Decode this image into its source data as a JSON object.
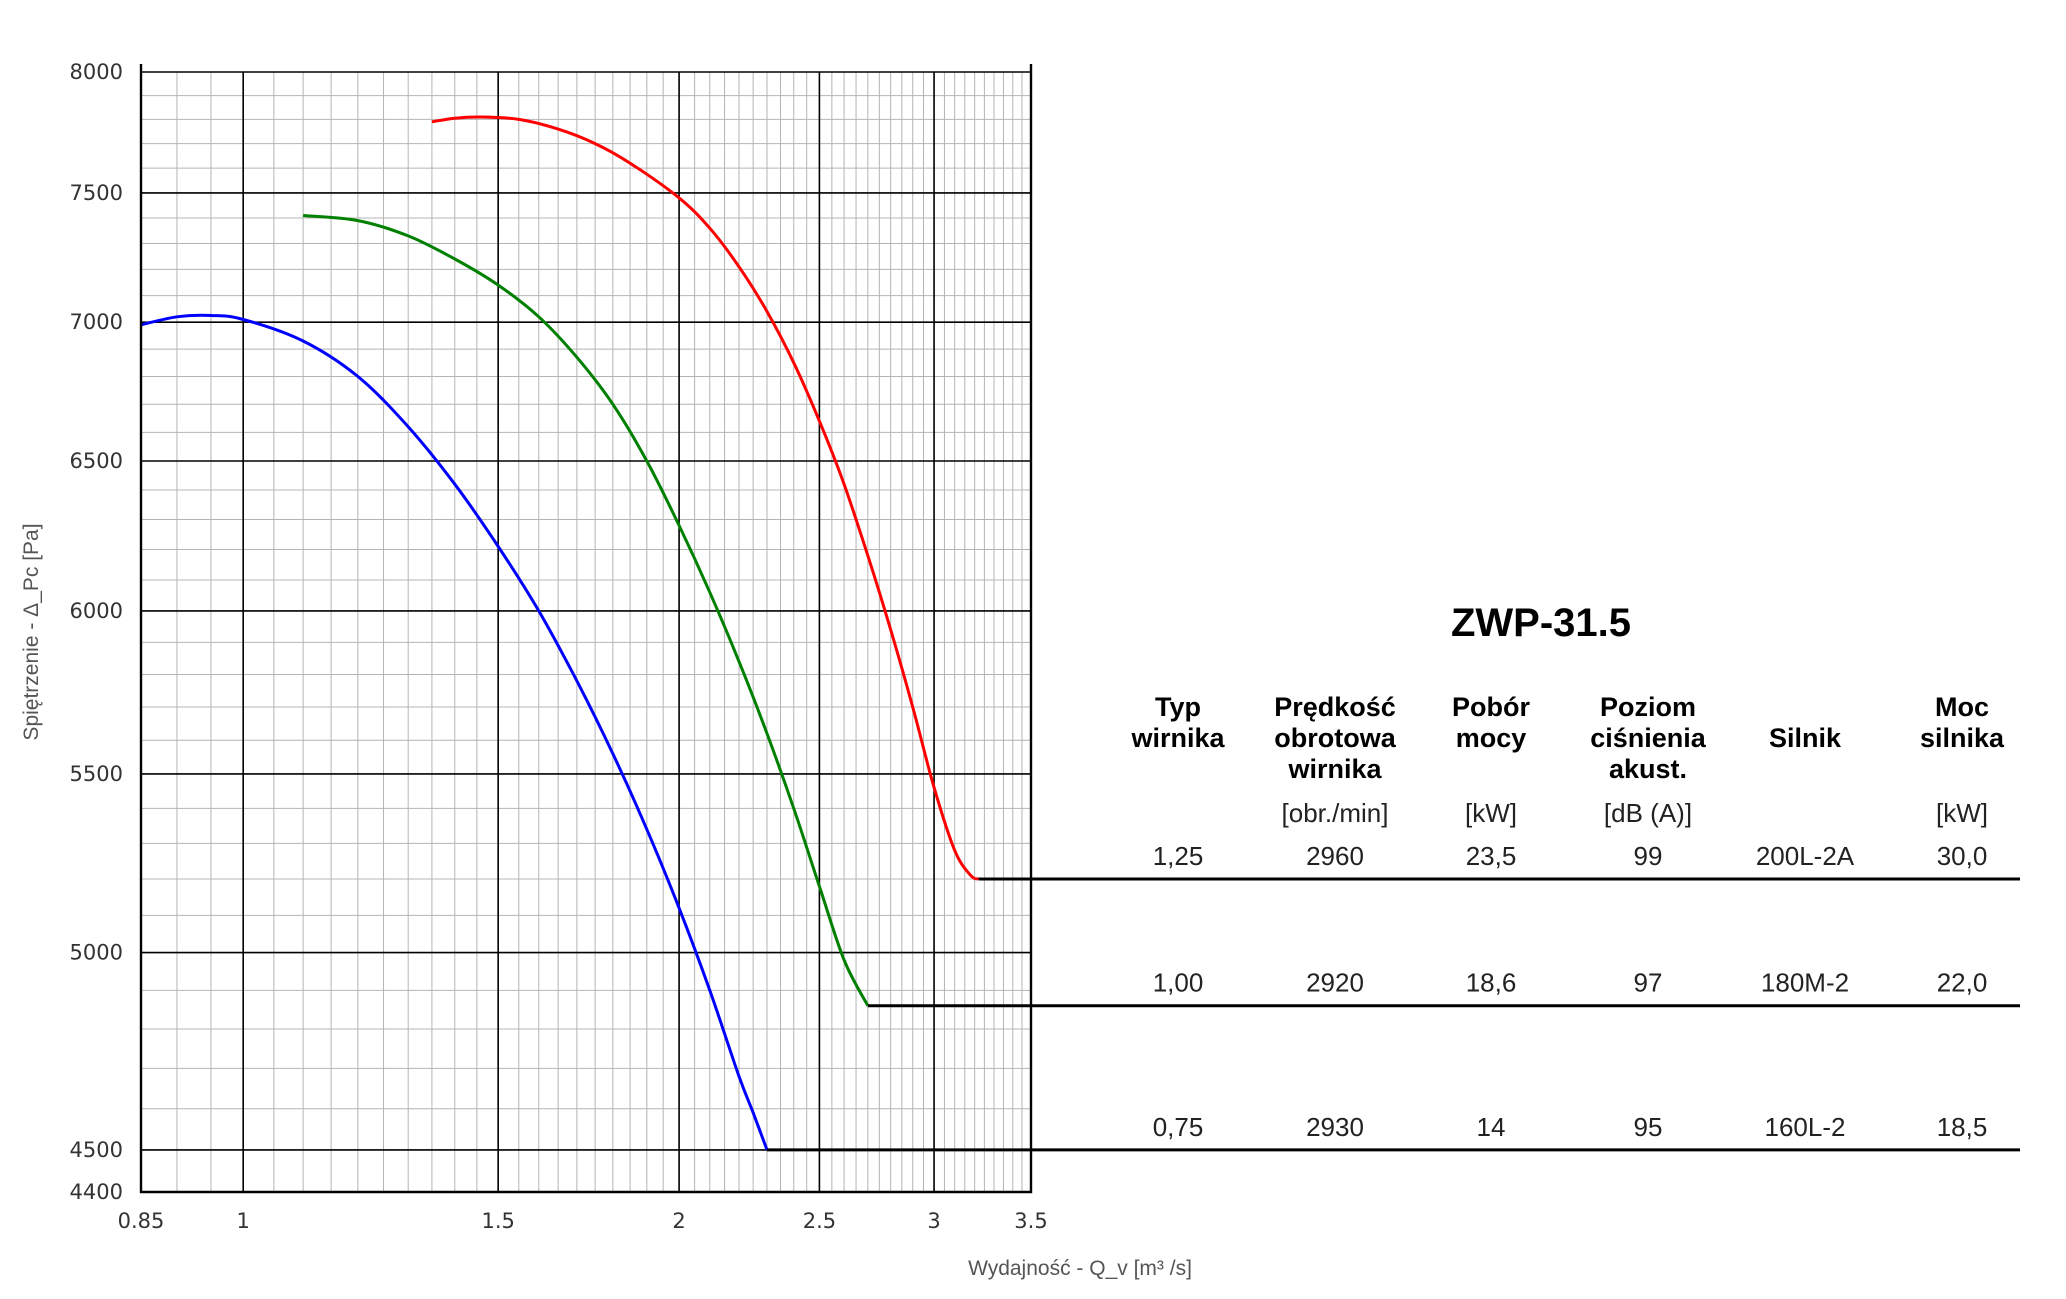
{
  "chart_data": {
    "type": "line",
    "xlabel": "Wydajność - Q_v [m³ /s]",
    "ylabel": "Spiętrzenie - Δ_Pc [Pa]",
    "x_scale": "log",
    "y_scale": "log",
    "xlim": [
      0.85,
      3.5
    ],
    "ylim": [
      4400,
      8000
    ],
    "x_ticks": [
      "0.85",
      "1",
      "1.5",
      "2",
      "2.5",
      "3",
      "3.5"
    ],
    "y_ticks": [
      "4400",
      "4500",
      "5000",
      "5500",
      "6000",
      "6500",
      "7000",
      "7500",
      "8000"
    ],
    "grid": true,
    "series": [
      {
        "color": "#ff0000",
        "x": [
          1.35,
          1.4,
          1.46,
          1.55,
          1.65,
          1.75,
          1.85,
          2.0,
          2.1,
          2.2,
          2.3,
          2.4,
          2.5,
          2.6,
          2.7,
          2.8,
          2.9,
          3.0,
          3.1,
          3.18,
          3.22
        ],
        "y": [
          7790,
          7805,
          7810,
          7800,
          7760,
          7700,
          7620,
          7480,
          7360,
          7210,
          7040,
          6850,
          6640,
          6420,
          6180,
          5940,
          5700,
          5460,
          5280,
          5210,
          5200
        ],
        "end_x": 3.22,
        "end_y": 5200
      },
      {
        "color": "#008000",
        "x": [
          1.1,
          1.2,
          1.3,
          1.4,
          1.5,
          1.6,
          1.7,
          1.8,
          1.9,
          2.0,
          2.1,
          2.2,
          2.3,
          2.4,
          2.5,
          2.6,
          2.7
        ],
        "y": [
          7410,
          7390,
          7330,
          7240,
          7140,
          7020,
          6870,
          6700,
          6500,
          6280,
          6060,
          5840,
          5620,
          5400,
          5180,
          4980,
          4860
        ],
        "end_x": 2.7,
        "end_y": 4860
      },
      {
        "color": "#0000ff",
        "x": [
          0.85,
          0.9,
          0.95,
          1.0,
          1.1,
          1.2,
          1.3,
          1.4,
          1.5,
          1.6,
          1.7,
          1.8,
          1.9,
          2.0,
          2.1,
          2.2,
          2.25,
          2.3
        ],
        "y": [
          6990,
          7020,
          7025,
          7010,
          6930,
          6800,
          6620,
          6420,
          6210,
          6000,
          5780,
          5560,
          5340,
          5120,
          4900,
          4680,
          4590,
          4500
        ],
        "end_x": 2.3,
        "end_y": 4500
      }
    ]
  },
  "table": {
    "title": "ZWP-31.5",
    "headers": [
      {
        "lines": [
          "Typ",
          "wirnika"
        ],
        "unit": ""
      },
      {
        "lines": [
          "Prędkość",
          "obrotowa",
          "wirnika"
        ],
        "unit": "[obr./min]"
      },
      {
        "lines": [
          "Pobór",
          "mocy"
        ],
        "unit": "[kW]"
      },
      {
        "lines": [
          "Poziom",
          "ciśnienia",
          "akust."
        ],
        "unit": "[dB (A)]"
      },
      {
        "lines": [
          "Silnik"
        ],
        "unit": ""
      },
      {
        "lines": [
          "Moc",
          "silnika"
        ],
        "unit": "[kW]"
      }
    ],
    "rows": [
      {
        "series_index": 0,
        "cells": [
          "1,25",
          "2960",
          "23,5",
          "99",
          "200L-2A",
          "30,0"
        ]
      },
      {
        "series_index": 1,
        "cells": [
          "1,00",
          "2920",
          "18,6",
          "97",
          "180M-2",
          "22,0"
        ]
      },
      {
        "series_index": 2,
        "cells": [
          "0,75",
          "2930",
          "14",
          "95",
          "160L-2",
          "18,5"
        ]
      }
    ]
  }
}
